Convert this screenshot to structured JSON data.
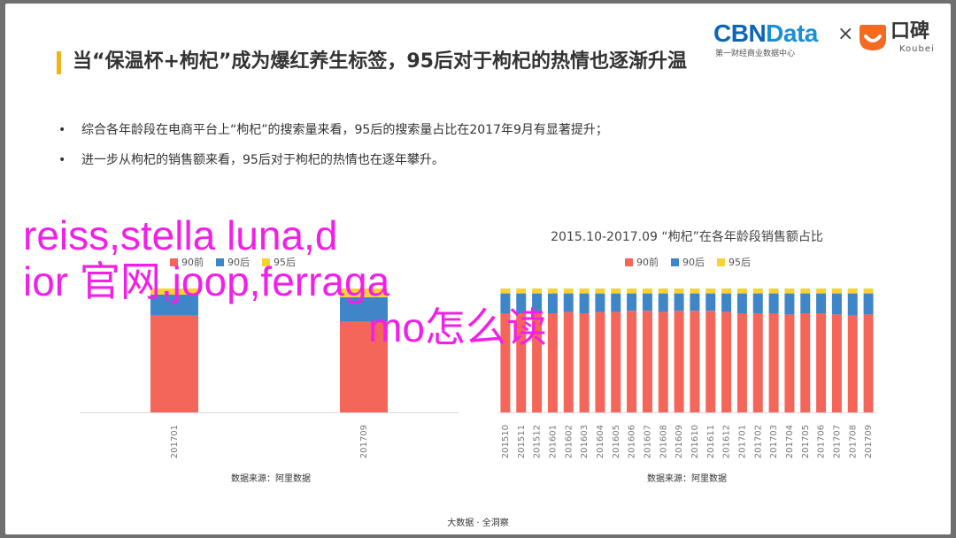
{
  "title": "当“保温杯+枸杞”成为爆红养生标签，95后对于枸杞的热情也逐渐升温",
  "logos": {
    "cbn_part1": "CBN",
    "cbn_part2": "Data",
    "cbn_sub": "第一财经商业数据中心",
    "times": "×",
    "koubei_cn": "口碑",
    "koubei_en": "Koubei",
    "colors": {
      "cbn": "#0c65b6",
      "data": "#1b8fd4",
      "koubei": "#f36b20"
    }
  },
  "bullets": [
    "综合各年龄段在电商平台上“枸杞”的搜索量来看，95后的搜索量占比在2017年9月有显著提升；",
    "进一步从枸杞的销售额来看，95后对于枸杞的热情也在逐年攀升。"
  ],
  "watermark": {
    "line1": "reiss,stella luna,d",
    "line2": "ior 官网,joop,ferraga",
    "line3": "mo怎么读"
  },
  "chart_data": [
    {
      "type": "bar",
      "stacked": true,
      "percent": true,
      "title": "",
      "categories": [
        "201701",
        "201709"
      ],
      "series": [
        {
          "name": "90前",
          "color": "#f4665a",
          "values": [
            78,
            73
          ]
        },
        {
          "name": "90后",
          "color": "#3f86c9",
          "values": [
            17,
            20
          ]
        },
        {
          "name": "95后",
          "color": "#f8d235",
          "values": [
            5,
            7
          ]
        }
      ],
      "ylim": [
        0,
        100
      ],
      "legend": "top",
      "source": "数据来源：阿里数据"
    },
    {
      "type": "bar",
      "stacked": true,
      "percent": true,
      "title": "2015.10-2017.09 “枸杞”在各年龄段销售额占比",
      "categories": [
        "201510",
        "201511",
        "201512",
        "201601",
        "201602",
        "201603",
        "201604",
        "201605",
        "201606",
        "201607",
        "201608",
        "201609",
        "201610",
        "201611",
        "201612",
        "201701",
        "201702",
        "201703",
        "201704",
        "201705",
        "201706",
        "201707",
        "201708",
        "201709"
      ],
      "series": [
        {
          "name": "90前",
          "color": "#f4665a",
          "values": [
            80,
            80,
            81,
            80,
            81,
            80,
            81,
            81,
            82,
            82,
            81,
            82,
            82,
            82,
            81,
            80,
            80,
            80,
            79,
            80,
            80,
            79,
            78,
            79
          ]
        },
        {
          "name": "90后",
          "color": "#3f86c9",
          "values": [
            16,
            16,
            15,
            16,
            15,
            16,
            15,
            15,
            14,
            14,
            15,
            14,
            14,
            14,
            15,
            16,
            16,
            16,
            17,
            16,
            16,
            17,
            18,
            17
          ]
        },
        {
          "name": "95后",
          "color": "#f8d235",
          "values": [
            4,
            4,
            4,
            4,
            4,
            4,
            4,
            4,
            4,
            4,
            4,
            4,
            4,
            4,
            4,
            4,
            4,
            4,
            4,
            4,
            4,
            4,
            4,
            4
          ]
        }
      ],
      "ylim": [
        0,
        100
      ],
      "legend": "top",
      "source": "数据来源：阿里数据"
    }
  ],
  "footer": "大数据 · 全洞察"
}
